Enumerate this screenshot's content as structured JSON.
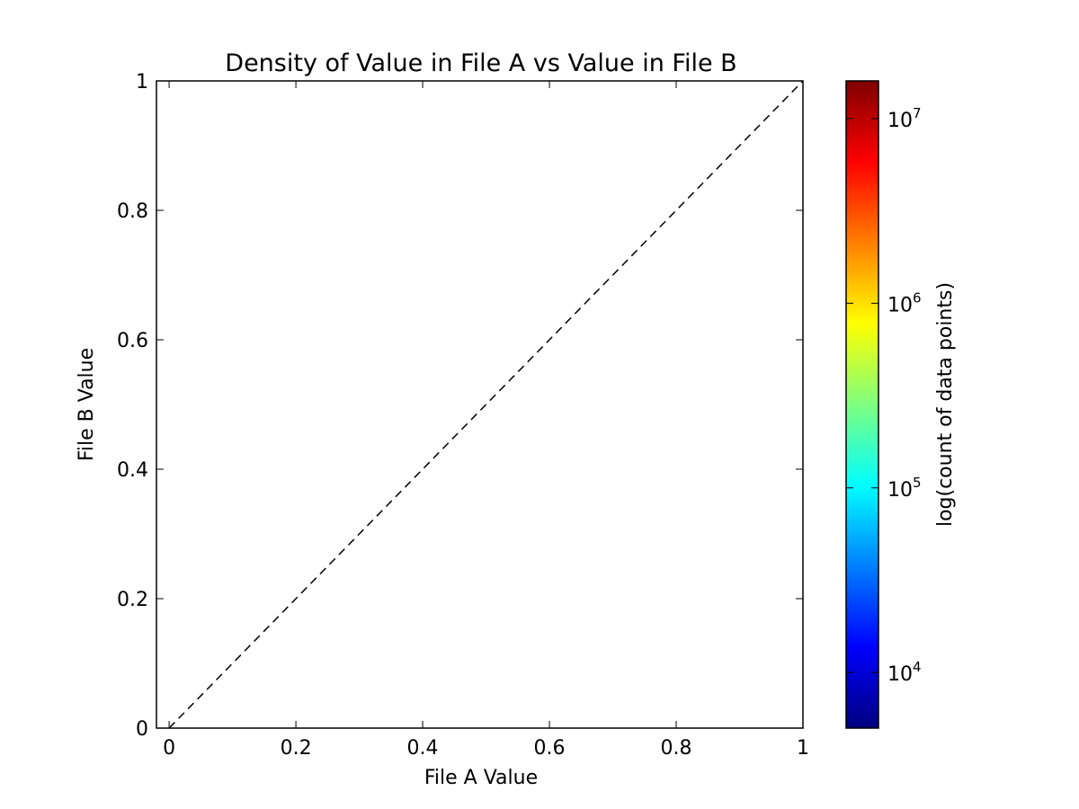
{
  "chart_data": {
    "type": "heatmap",
    "title": "Density of Value in File A vs Value in File B",
    "xlabel": "File A Value",
    "ylabel": "File B Value",
    "xlim": [
      -0.02,
      1.0
    ],
    "ylim": [
      0,
      1
    ],
    "x_ticks": [
      0,
      0.2,
      0.4,
      0.6,
      0.8,
      1
    ],
    "x_tick_labels": [
      "0",
      "0.2",
      "0.4",
      "0.6",
      "0.8",
      "1"
    ],
    "y_ticks": [
      0,
      0.2,
      0.4,
      0.6,
      0.8,
      1
    ],
    "y_tick_labels": [
      "0",
      "0.2",
      "0.4",
      "0.6",
      "0.8",
      "1"
    ],
    "grid": false,
    "reference_line": {
      "style": "dashed",
      "color": "#000000",
      "x": [
        0,
        1
      ],
      "y": [
        0,
        1
      ]
    },
    "colorbar": {
      "label": "log(count of data points)",
      "scale": "log",
      "range": [
        5000,
        16000000
      ],
      "colormap": "jet",
      "colormap_stops": [
        "#00007f",
        "#0000ff",
        "#007fff",
        "#00ffff",
        "#7fff7f",
        "#ffff00",
        "#ff7f00",
        "#ff0000",
        "#7f0000"
      ],
      "ticks": [
        {
          "value": 10000,
          "base": "10",
          "exp": "4"
        },
        {
          "value": 100000,
          "base": "10",
          "exp": "5"
        },
        {
          "value": 1000000,
          "base": "10",
          "exp": "6"
        },
        {
          "value": 10000000,
          "base": "10",
          "exp": "7"
        }
      ]
    }
  }
}
